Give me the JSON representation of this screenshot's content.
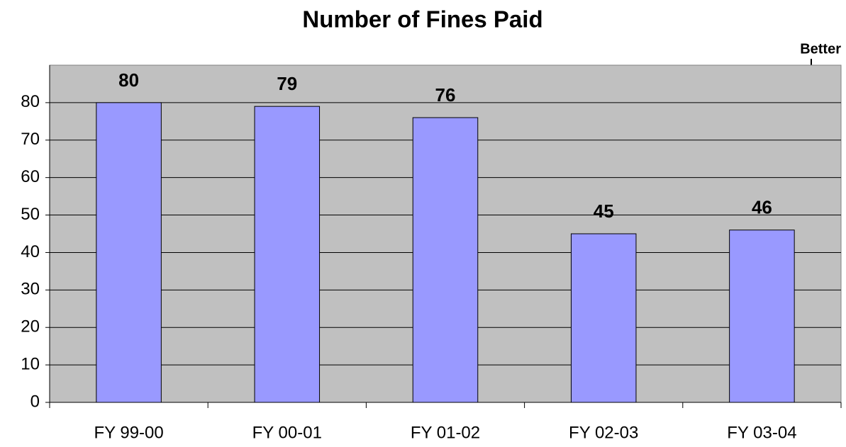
{
  "chart_data": {
    "type": "bar",
    "title": "Number of Fines Paid",
    "categories": [
      "FY 99-00",
      "FY 00-01",
      "FY 01-02",
      "FY 02-03",
      "FY 03-04"
    ],
    "values": [
      80,
      79,
      76,
      45,
      46
    ],
    "color": "#9999ff",
    "ylim": [
      0,
      90
    ],
    "yticks": [
      0,
      10,
      20,
      30,
      40,
      50,
      60,
      70,
      80
    ],
    "grid": true,
    "annotation": "Better"
  }
}
